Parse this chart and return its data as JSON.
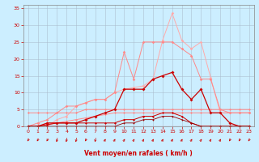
{
  "x": [
    0,
    1,
    2,
    3,
    4,
    5,
    6,
    7,
    8,
    9,
    10,
    11,
    12,
    13,
    14,
    15,
    16,
    17,
    18,
    19,
    20,
    21,
    22,
    23
  ],
  "line_light1": [
    0,
    0,
    0,
    2,
    3,
    6,
    7,
    8,
    8,
    10,
    11,
    11.5,
    12,
    14,
    25.5,
    33.5,
    25.5,
    23,
    25,
    14.5,
    4,
    4,
    4,
    4
  ],
  "line_light2": [
    0,
    1,
    2,
    4,
    6,
    6,
    7,
    8,
    8,
    10,
    22,
    14,
    25,
    25,
    25,
    25,
    23,
    21,
    14,
    14,
    5,
    4,
    4,
    4
  ],
  "line_med1": [
    4,
    4,
    4,
    4,
    4,
    4,
    5,
    5,
    5,
    5,
    5,
    5,
    5,
    5,
    5,
    5,
    5,
    5,
    5,
    5,
    5,
    5,
    5,
    5
  ],
  "line_med2": [
    0,
    0.2,
    0.5,
    1,
    1.5,
    2,
    2.5,
    3,
    3.5,
    4,
    4,
    4,
    4,
    4,
    4,
    4,
    4,
    4,
    4,
    4,
    4,
    4,
    4,
    4
  ],
  "line_dark1": [
    0,
    0,
    1,
    1,
    1,
    1,
    2,
    3,
    4,
    5,
    11,
    11,
    11,
    14,
    15,
    16,
    11,
    8,
    11,
    4,
    4,
    1,
    0,
    0
  ],
  "line_dark2": [
    0,
    0,
    0.5,
    1,
    1,
    1,
    1,
    1,
    1,
    1,
    2,
    2,
    3,
    3,
    4,
    4,
    3,
    1,
    0,
    0,
    0,
    0,
    0,
    0
  ],
  "line_flat": [
    0,
    0,
    0,
    0,
    0,
    0,
    0,
    0,
    0,
    0,
    1,
    1,
    2,
    2,
    3,
    3,
    2,
    1,
    0,
    0,
    0,
    0,
    0,
    0
  ],
  "arrow_angles": [
    225,
    225,
    225,
    200,
    200,
    200,
    225,
    200,
    45,
    45,
    45,
    45,
    45,
    45,
    45,
    45,
    45,
    45,
    45,
    45,
    45,
    225,
    225,
    225
  ],
  "bg_color": "#cceeff",
  "grid_color": "#aabbcc",
  "ylim": [
    0,
    36
  ],
  "xlim": [
    -0.5,
    23.5
  ],
  "yticks": [
    0,
    5,
    10,
    15,
    20,
    25,
    30,
    35
  ],
  "xticks": [
    0,
    1,
    2,
    3,
    4,
    5,
    6,
    7,
    8,
    9,
    10,
    11,
    12,
    13,
    14,
    15,
    16,
    17,
    18,
    19,
    20,
    21,
    22,
    23
  ],
  "xlabel": "Vent moyen/en rafales ( km/h )",
  "color_light": "#ffaaaa",
  "color_light2": "#ff8888",
  "color_med": "#ee6666",
  "color_dark": "#cc0000",
  "color_darkest": "#990000"
}
